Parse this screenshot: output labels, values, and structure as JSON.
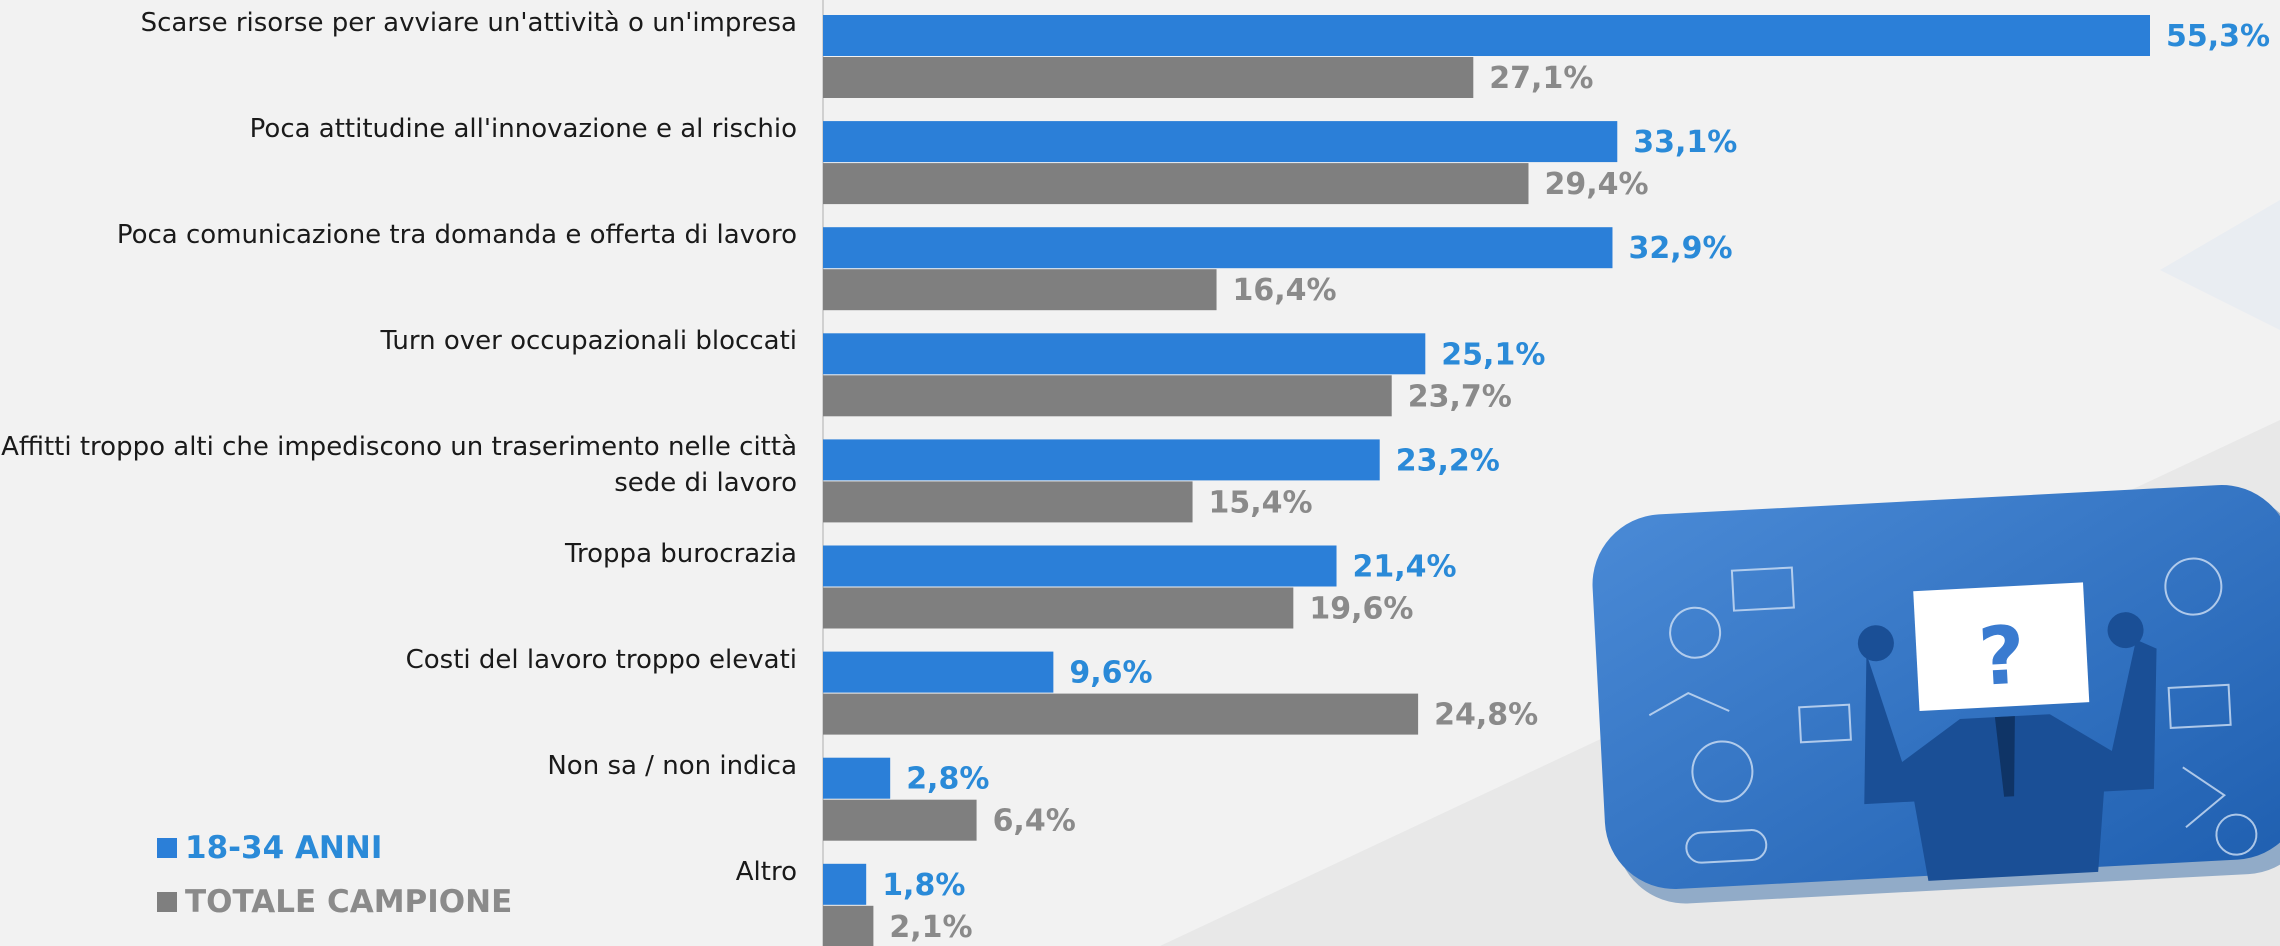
{
  "chart_data": {
    "type": "bar",
    "orientation": "horizontal",
    "categories": [
      "Scarse risorse per avviare un'attività o un'impresa",
      "Poca attitudine all'innovazione e al rischio",
      "Poca comunicazione tra domanda e offerta di lavoro",
      "Turn over occupazionali bloccati",
      "Affitti troppo alti che impediscono un traserimento nelle città sede di lavoro",
      "Troppa burocrazia",
      "Costi del lavoro troppo elevati",
      "Non sa / non indica",
      "Altro"
    ],
    "series": [
      {
        "name": "18-34 ANNI",
        "color": "#2b7fd8",
        "label_color": "#2a8ad8",
        "values": [
          55.3,
          33.1,
          32.9,
          25.1,
          23.2,
          21.4,
          9.6,
          2.8,
          1.8
        ],
        "value_labels": [
          "55,3%",
          "33,1%",
          "32,9%",
          "25,1%",
          "23,2%",
          "21,4%",
          "9,6%",
          "2,8%",
          "1,8%"
        ]
      },
      {
        "name": "TOTALE CAMPIONE",
        "color": "#7f7f7f",
        "label_color": "#8a8a8a",
        "values": [
          27.1,
          29.4,
          16.4,
          23.7,
          15.4,
          19.6,
          24.8,
          6.4,
          2.1
        ],
        "value_labels": [
          "27,1%",
          "29,4%",
          "16,4%",
          "23,7%",
          "15,4%",
          "19,6%",
          "24,8%",
          "6,4%",
          "2,1%"
        ]
      }
    ]
  }
}
